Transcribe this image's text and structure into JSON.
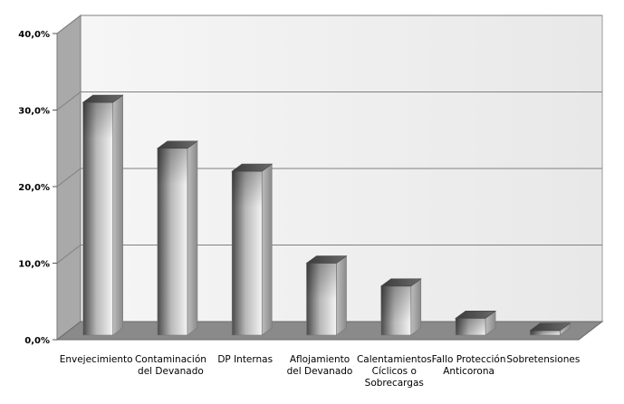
{
  "chart_data": {
    "type": "bar",
    "title": "",
    "xlabel": "",
    "ylabel": "",
    "categories": [
      [
        "Envejecimiento"
      ],
      [
        "Contaminación",
        "del Devanado"
      ],
      [
        "DP Internas"
      ],
      [
        "Aflojamiento",
        "del Devanado"
      ],
      [
        "Calentamientos",
        "Cíclicos o",
        "Sobrecargas"
      ],
      [
        "Fallo Protección",
        "Anticorona"
      ],
      [
        "Sobretensiones"
      ]
    ],
    "values": [
      31.0,
      25.0,
      22.0,
      10.0,
      7.0,
      2.8,
      1.2
    ],
    "value_unit": "percent",
    "ylim": [
      0,
      40
    ],
    "yticks": [
      "0,0%",
      "10,0%",
      "20,0%",
      "30,0%",
      "40,0%"
    ],
    "grid": true,
    "legend": "none",
    "style": "3d-cylinder-bars",
    "colors": {
      "wall": "#f0f0f0",
      "side_wall": "#a9a9a9",
      "floor": "#8a8a8a",
      "gridline": "#808080",
      "bar_dark": "#3a3a3a",
      "bar_light": "#f2f2f2"
    }
  }
}
